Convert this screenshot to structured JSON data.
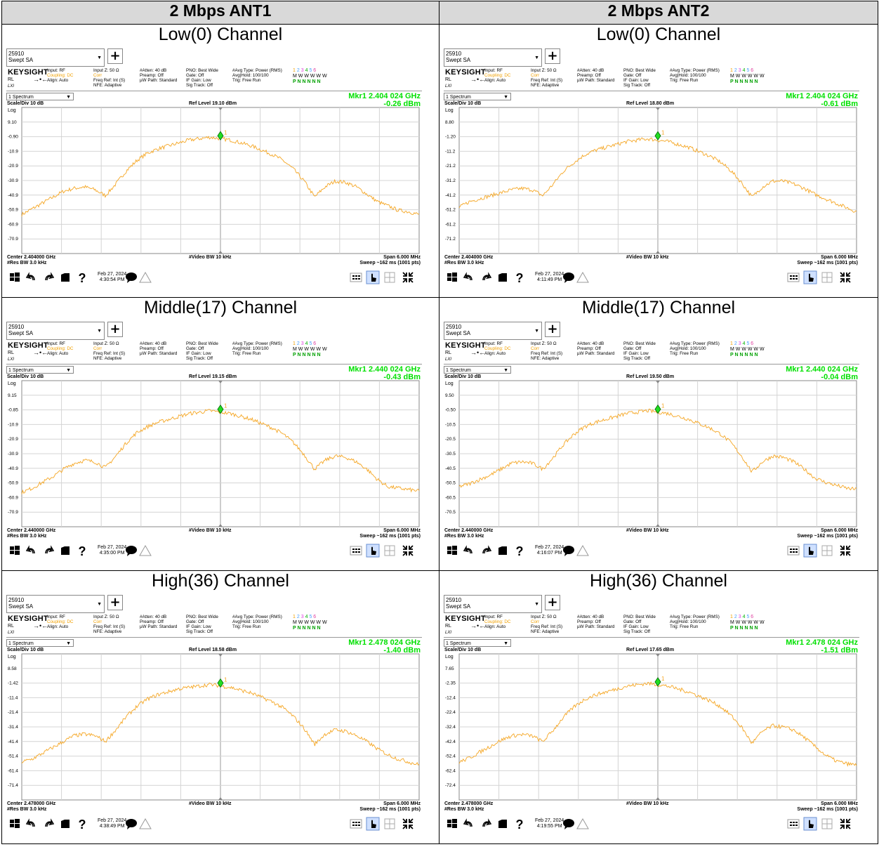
{
  "headers": [
    "2 Mbps ANT1",
    "2 Mbps ANT2"
  ],
  "common": {
    "mode_line1": "25910",
    "mode_line2": "Swept SA",
    "logo": "KEYSIGHT",
    "rl": "RL",
    "lxi": "LXI",
    "col1": [
      "Input: RF",
      "Coupling: DC",
      "Align: Auto"
    ],
    "col2": [
      "Input Z: 50 Ω",
      "Corr",
      "Freq Ref: Int (S)",
      "NFE: Adaptive"
    ],
    "col3": [
      "#Atten: 40 dB",
      "Preamp: Off",
      "µW Path: Standard"
    ],
    "col4": [
      "PNO: Best Wide",
      "Gate: Off",
      "IF Gain: Low",
      "Sig Track: Off"
    ],
    "col5": [
      "#Avg Type: Power (RMS)",
      "Avg|Hold: 100/100",
      "Trig: Free Run"
    ],
    "trace_nums": [
      "1",
      "2",
      "3",
      "4",
      "5",
      "6"
    ],
    "trace_m": "M W W W W W",
    "trace_p": "P N N N N N",
    "spectrum": "1 Spectrum",
    "scale": "Scale/Div 10 dB",
    "log": "Log",
    "vbw": "#Video BW 10 kHz",
    "rbw": "#Res BW 3.0 kHz",
    "span": "Span 6.000 MHz",
    "sweep": "Sweep ~162 ms (1001 pts)",
    "marker_num": "1",
    "date": "Feb 27, 2024"
  },
  "rows": [
    {
      "title": "Low(0) Channel",
      "cells": [
        {
          "ref": "Ref Level 19.10 dBm",
          "mkr": "Mkr1  2.404 024 GHz",
          "mkrv": "-0.26 dBm",
          "center": "Center 2.404000 GHz",
          "time": "4:30:54 PM",
          "yticks": [
            "9.10",
            "-0.90",
            "-10.9",
            "-20.9",
            "-30.9",
            "-40.9",
            "-50.9",
            "-60.9",
            "-70.9"
          ],
          "curve": [
            -54,
            -50,
            -46,
            -42,
            -38,
            -36,
            -35,
            -37,
            -41,
            -33,
            -24,
            -17,
            -12,
            -9,
            -7,
            -5,
            -3,
            -2,
            -1,
            -2,
            -3,
            -5,
            -7,
            -10,
            -13,
            -17,
            -23,
            -31,
            -42,
            -35,
            -31,
            -32,
            -35,
            -40,
            -45,
            -48,
            -51,
            -52,
            -54
          ]
        },
        {
          "ref": "Ref Level 18.80 dBm",
          "mkr": "Mkr1  2.404 024 GHz",
          "mkrv": "-0.61 dBm",
          "center": "Center 2.404000 GHz",
          "time": "4:11:49 PM",
          "yticks": [
            "8.80",
            "-1.20",
            "-11.2",
            "-21.2",
            "-31.2",
            "-41.2",
            "-51.2",
            "-61.2",
            "-71.2"
          ],
          "curve": [
            -49,
            -45,
            -43,
            -41,
            -39,
            -37,
            -36,
            -37,
            -41,
            -33,
            -24,
            -18,
            -13,
            -10,
            -8,
            -6,
            -4,
            -3,
            -2,
            -3,
            -4,
            -6,
            -8,
            -11,
            -14,
            -18,
            -24,
            -32,
            -42,
            -35,
            -31,
            -31,
            -33,
            -36,
            -40,
            -43,
            -46,
            -49,
            -52
          ]
        }
      ]
    },
    {
      "title": "Middle(17) Channel",
      "cells": [
        {
          "ref": "Ref Level 19.15 dBm",
          "mkr": "Mkr1  2.440 024 GHz",
          "mkrv": "-0.43 dBm",
          "center": "Center 2.440000 GHz",
          "time": "4:35:00 PM",
          "yticks": [
            "9.15",
            "-0.85",
            "-10.9",
            "-20.9",
            "-30.9",
            "-40.9",
            "-50.9",
            "-60.9",
            "-70.9"
          ],
          "curve": [
            -57,
            -54,
            -50,
            -46,
            -41,
            -37,
            -35,
            -36,
            -40,
            -32,
            -23,
            -16,
            -12,
            -9,
            -7,
            -5,
            -3,
            -2,
            -1,
            -2,
            -3,
            -5,
            -7,
            -10,
            -13,
            -17,
            -23,
            -31,
            -41,
            -35,
            -32,
            -33,
            -36,
            -41,
            -48,
            -53,
            -54,
            -55,
            -56
          ]
        },
        {
          "ref": "Ref Level 19.50 dBm",
          "mkr": "Mkr1  2.440 024 GHz",
          "mkrv": "-0.04 dBm",
          "center": "Center 2.440000 GHz",
          "time": "4:16:07 PM",
          "yticks": [
            "9.50",
            "-0.50",
            "-10.5",
            "-20.5",
            "-30.5",
            "-40.5",
            "-50.5",
            "-60.5",
            "-70.5"
          ],
          "curve": [
            -53,
            -51,
            -48,
            -45,
            -41,
            -37,
            -36,
            -37,
            -41,
            -33,
            -24,
            -17,
            -12,
            -9,
            -7,
            -5,
            -3,
            -2,
            -1,
            -2,
            -3,
            -5,
            -7,
            -10,
            -13,
            -17,
            -23,
            -32,
            -43,
            -36,
            -32,
            -33,
            -36,
            -41,
            -47,
            -50,
            -52,
            -54,
            -55
          ]
        }
      ]
    },
    {
      "title": "High(36) Channel",
      "cells": [
        {
          "ref": "Ref Level 18.58 dBm",
          "mkr": "Mkr1  2.478 024 GHz",
          "mkrv": "-1.40 dBm",
          "center": "Center 2.478000 GHz",
          "time": "4:38:49 PM",
          "yticks": [
            "8.58",
            "-1.42",
            "-11.4",
            "-21.4",
            "-31.4",
            "-41.4",
            "-51.4",
            "-61.4",
            "-71.4"
          ],
          "curve": [
            -54,
            -52,
            -48,
            -44,
            -40,
            -36,
            -35,
            -36,
            -40,
            -32,
            -23,
            -16,
            -11,
            -8,
            -6,
            -4,
            -3,
            -2,
            -1,
            -2,
            -3,
            -5,
            -7,
            -10,
            -13,
            -17,
            -23,
            -31,
            -42,
            -35,
            -32,
            -33,
            -36,
            -40,
            -45,
            -49,
            -52,
            -54,
            -56
          ]
        },
        {
          "ref": "Ref Level 17.65 dBm",
          "mkr": "Mkr1  2.478 024 GHz",
          "mkrv": "-1.51 dBm",
          "center": "Center 2.478000 GHz",
          "time": "4:19:55 PM",
          "yticks": [
            "7.65",
            "-2.35",
            "-12.4",
            "-22.4",
            "-32.4",
            "-42.4",
            "-52.4",
            "-62.4",
            "-72.4"
          ],
          "curve": [
            -55,
            -52,
            -48,
            -44,
            -40,
            -37,
            -36,
            -37,
            -41,
            -33,
            -24,
            -17,
            -12,
            -9,
            -7,
            -5,
            -3,
            -2,
            -1,
            -2,
            -3,
            -5,
            -7,
            -10,
            -13,
            -17,
            -23,
            -31,
            -42,
            -34,
            -30,
            -31,
            -33,
            -38,
            -44,
            -50,
            -54,
            -56,
            -57
          ]
        }
      ]
    }
  ]
}
